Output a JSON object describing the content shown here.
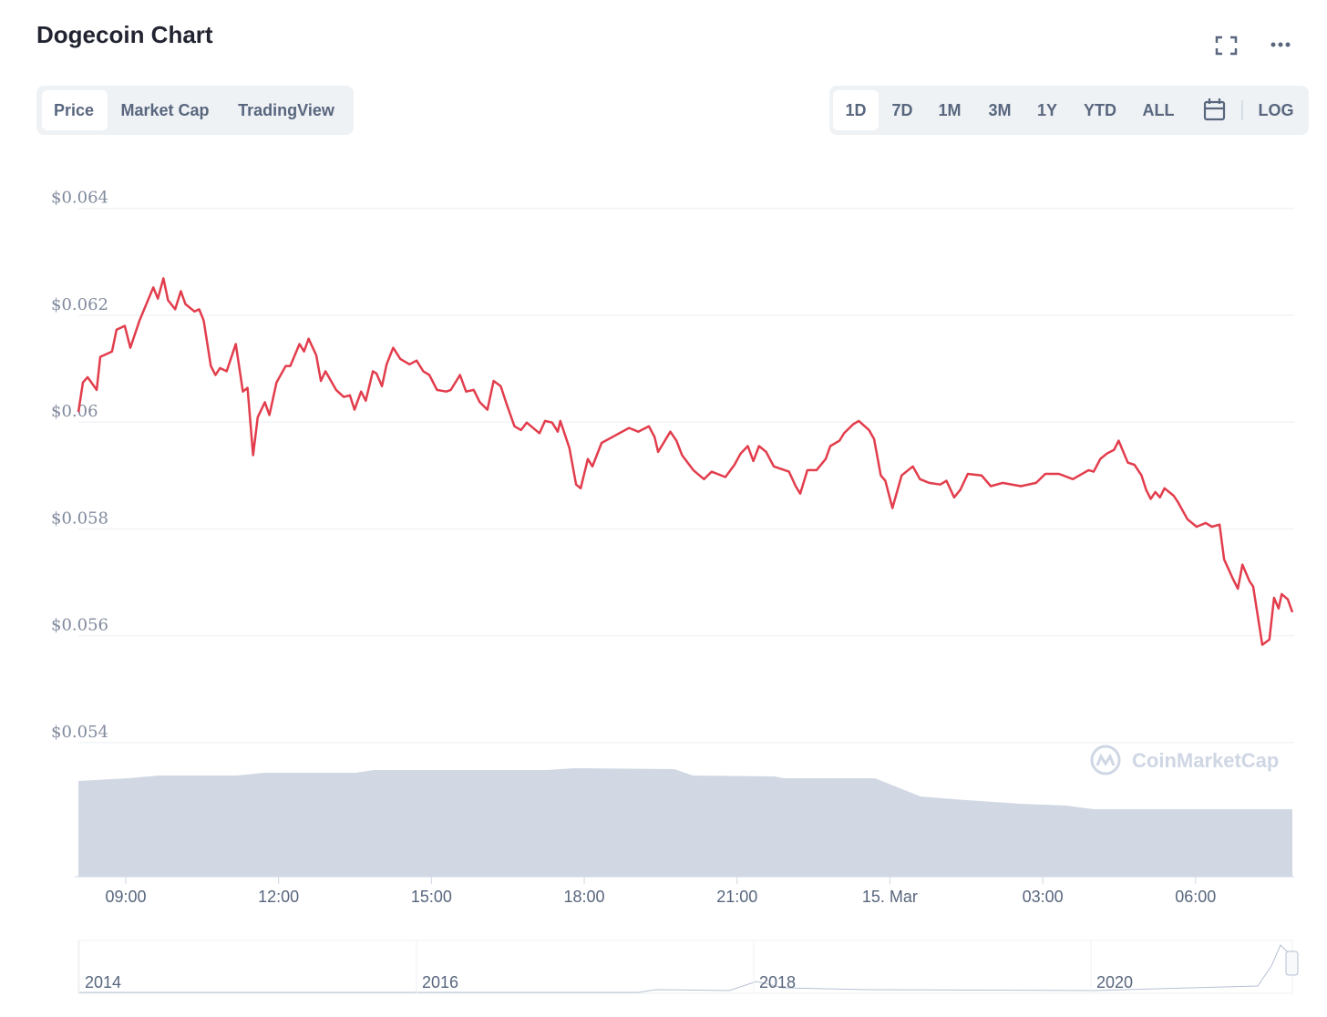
{
  "header": {
    "title": "Dogecoin Chart"
  },
  "tabs": [
    "Price",
    "Market Cap",
    "TradingView"
  ],
  "ranges": [
    "1D",
    "7D",
    "1M",
    "3M",
    "1Y",
    "YTD",
    "ALL"
  ],
  "log_button": "LOG",
  "watermark": "CoinMarketCap",
  "navigator": {
    "labels": [
      "2014",
      "2016",
      "2018",
      "2020"
    ]
  },
  "chart_data": {
    "type": "line",
    "x": [
      8.07,
      8.16,
      8.25,
      8.43,
      8.5,
      8.73,
      8.82,
      8.98,
      9.09,
      9.27,
      9.54,
      9.63,
      9.74,
      9.83,
      9.97,
      10.08,
      10.17,
      10.35,
      10.44,
      10.53,
      10.67,
      10.76,
      10.85,
      10.98,
      11.16,
      11.3,
      11.39,
      11.5,
      11.59,
      11.73,
      11.82,
      11.96,
      12.14,
      12.23,
      12.41,
      12.5,
      12.59,
      12.74,
      12.83,
      12.92,
      13.13,
      13.28,
      13.4,
      13.49,
      13.62,
      13.71,
      13.85,
      13.92,
      14.03,
      14.12,
      14.25,
      14.39,
      14.57,
      14.71,
      14.84,
      14.96,
      15.11,
      15.29,
      15.38,
      15.56,
      15.68,
      15.83,
      15.95,
      16.1,
      16.22,
      16.36,
      16.49,
      16.63,
      16.76,
      16.87,
      17.12,
      17.23,
      17.37,
      17.48,
      17.53,
      17.71,
      17.84,
      17.93,
      18.07,
      18.16,
      18.34,
      18.61,
      18.88,
      19.06,
      19.27,
      19.38,
      19.45,
      19.69,
      19.81,
      19.92,
      20.14,
      20.35,
      20.5,
      20.77,
      20.95,
      21.07,
      21.21,
      21.32,
      21.43,
      21.57,
      21.72,
      22.02,
      22.15,
      22.24,
      22.38,
      22.56,
      22.74,
      22.83,
      23.01,
      23.1,
      23.28,
      23.39,
      23.59,
      23.69,
      23.82,
      23.91,
      24.05,
      24.23,
      24.45,
      24.59,
      24.77,
      24.99,
      25.11,
      25.26,
      25.38,
      25.53,
      25.8,
      25.98,
      26.21,
      26.57,
      26.87,
      27.05,
      27.32,
      27.59,
      27.9,
      28.0,
      28.13,
      28.26,
      28.4,
      28.49,
      28.67,
      28.8,
      28.94,
      29.03,
      29.12,
      29.21,
      29.3,
      29.39,
      29.57,
      29.66,
      29.84,
      30.02,
      30.2,
      30.32,
      30.47,
      30.56,
      30.74,
      30.83,
      30.92,
      31.06,
      31.13,
      31.31,
      31.45,
      31.54,
      31.63,
      31.69,
      31.81,
      31.9
    ],
    "series": [
      {
        "color": "#e23d4c",
        "values": [
          0.06019,
          0.06074,
          0.06084,
          0.0606,
          0.06122,
          0.06132,
          0.06173,
          0.0618,
          0.06139,
          0.0619,
          0.06252,
          0.06231,
          0.06269,
          0.06228,
          0.06211,
          0.06245,
          0.06221,
          0.06207,
          0.06211,
          0.0619,
          0.06105,
          0.06088,
          0.06101,
          0.06095,
          0.06146,
          0.06057,
          0.06064,
          0.05938,
          0.06009,
          0.06037,
          0.06013,
          0.06074,
          0.06105,
          0.06105,
          0.06146,
          0.06132,
          0.06156,
          0.06125,
          0.06077,
          0.06095,
          0.0606,
          0.06047,
          0.0605,
          0.06023,
          0.06057,
          0.0604,
          0.06095,
          0.06091,
          0.06067,
          0.06108,
          0.06139,
          0.06118,
          0.06108,
          0.06115,
          0.06095,
          0.06088,
          0.0606,
          0.06057,
          0.0606,
          0.06088,
          0.06057,
          0.0606,
          0.06037,
          0.06023,
          0.06077,
          0.06067,
          0.0603,
          0.05992,
          0.05985,
          0.05999,
          0.05979,
          0.06002,
          0.05999,
          0.05982,
          0.06002,
          0.05951,
          0.05883,
          0.05876,
          0.05931,
          0.05917,
          0.05961,
          0.05975,
          0.05989,
          0.05982,
          0.05992,
          0.05972,
          0.05944,
          0.05982,
          0.05965,
          0.05938,
          0.0591,
          0.05893,
          0.05907,
          0.05897,
          0.0592,
          0.05941,
          0.05955,
          0.05927,
          0.05955,
          0.05944,
          0.05917,
          0.05907,
          0.0588,
          0.05866,
          0.0591,
          0.0591,
          0.05931,
          0.05955,
          0.05965,
          0.05979,
          0.05996,
          0.06002,
          0.05985,
          0.05968,
          0.059,
          0.0589,
          0.05839,
          0.059,
          0.05917,
          0.05893,
          0.05886,
          0.05883,
          0.0589,
          0.05859,
          0.05873,
          0.05903,
          0.059,
          0.0588,
          0.05886,
          0.0588,
          0.05886,
          0.05903,
          0.05903,
          0.05893,
          0.0591,
          0.05907,
          0.05931,
          0.05941,
          0.05948,
          0.05965,
          0.05924,
          0.0592,
          0.059,
          0.05873,
          0.05856,
          0.05869,
          0.05859,
          0.05876,
          0.05862,
          0.05849,
          0.05818,
          0.05804,
          0.05811,
          0.05804,
          0.05808,
          0.05743,
          0.05705,
          0.05688,
          0.05733,
          0.05702,
          0.05692,
          0.05583,
          0.05593,
          0.05671,
          0.05651,
          0.05678,
          0.05668,
          0.05644
        ]
      }
    ],
    "xlim": [
      8.07,
      31.9
    ],
    "ylim": [
      0.05149,
      0.065
    ],
    "yticks": [
      {
        "value": 0.054,
        "label": "$0.054"
      },
      {
        "value": 0.056,
        "label": "$0.056"
      },
      {
        "value": 0.058,
        "label": "$0.058"
      },
      {
        "value": 0.06,
        "label": "$0.06"
      },
      {
        "value": 0.062,
        "label": "$0.062"
      },
      {
        "value": 0.064,
        "label": "$0.064"
      }
    ],
    "xticks": [
      {
        "value": 9,
        "label": "09:00"
      },
      {
        "value": 12,
        "label": "12:00"
      },
      {
        "value": 15,
        "label": "15:00"
      },
      {
        "value": 18,
        "label": "18:00"
      },
      {
        "value": 21,
        "label": "21:00"
      },
      {
        "value": 24,
        "label": "15. Mar"
      },
      {
        "value": 27,
        "label": "03:00"
      },
      {
        "value": 30,
        "label": "06:00"
      }
    ],
    "grid": true
  }
}
